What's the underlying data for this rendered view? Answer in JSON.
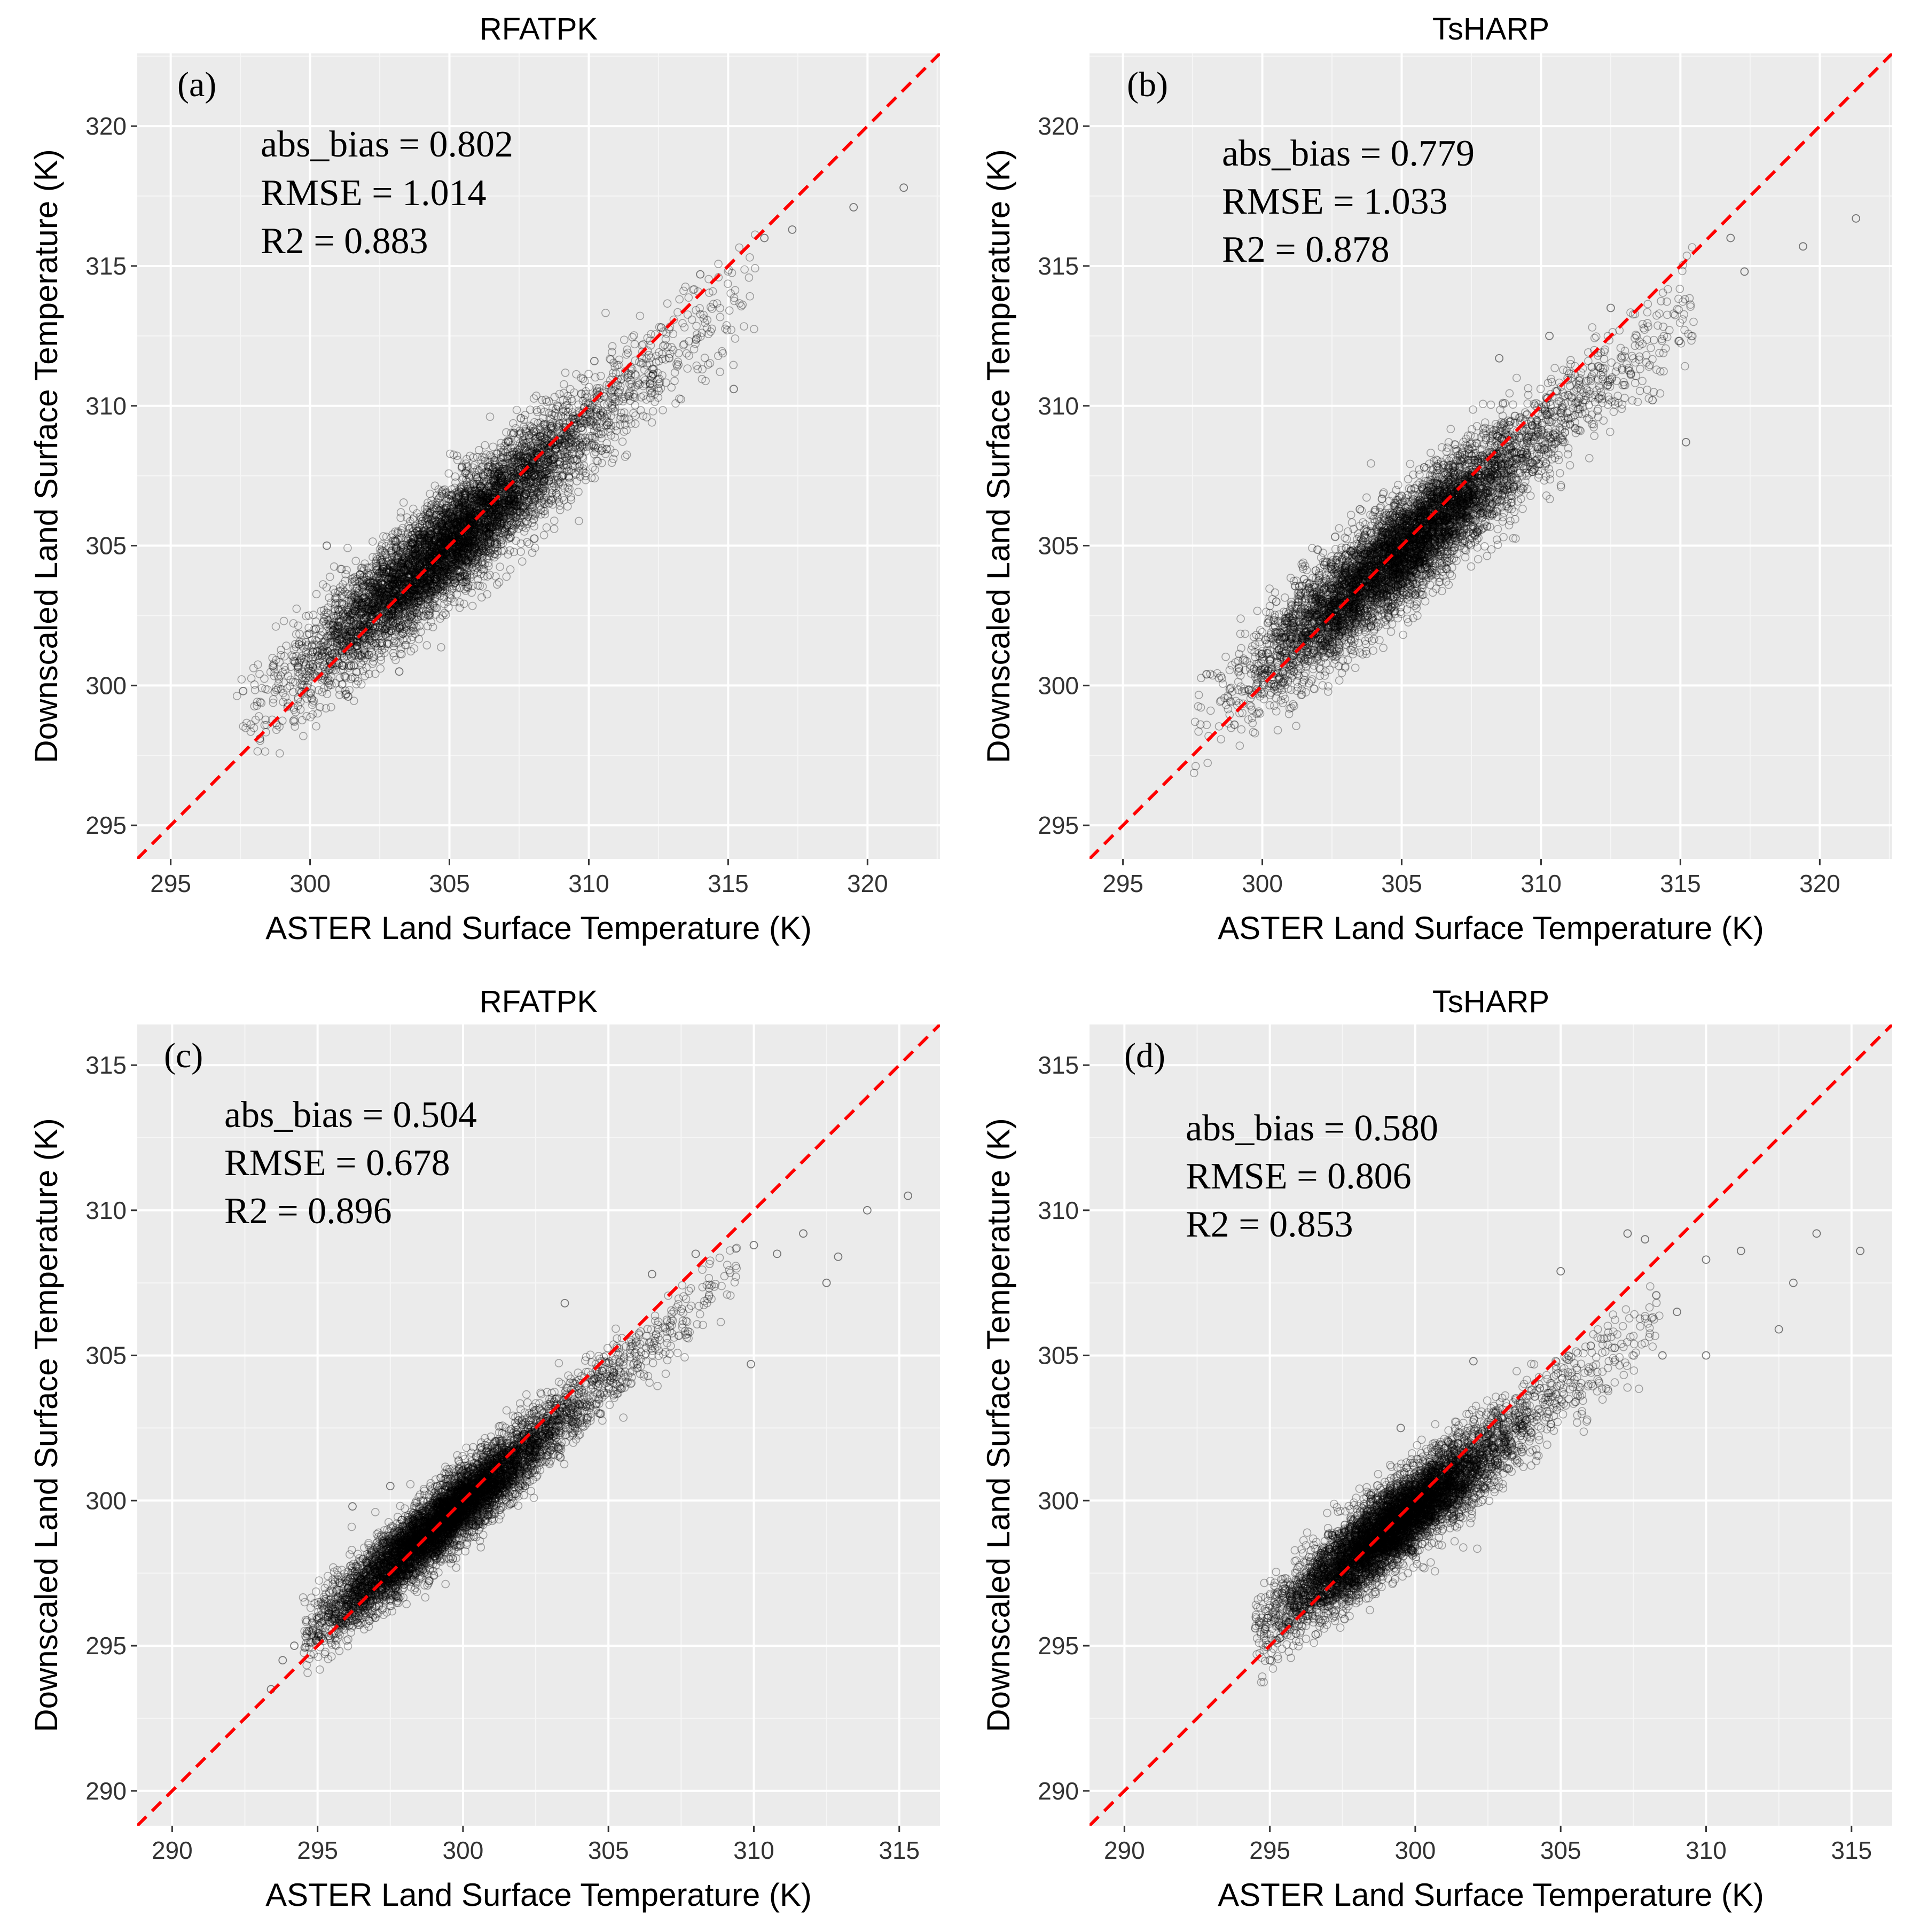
{
  "chart_data": [
    {
      "type": "scatter",
      "panel_tag": "(a)",
      "title": "RFATPK",
      "xlabel": "ASTER Land Surface Temperature (K)",
      "ylabel": "Downscaled Land Surface Temperature (K)",
      "xlim": [
        293.8,
        322.6
      ],
      "ylim": [
        293.8,
        322.6
      ],
      "x_ticks": [
        295,
        300,
        305,
        310,
        315,
        320
      ],
      "y_ticks": [
        295,
        300,
        305,
        310,
        315,
        320
      ],
      "grid": true,
      "reference_line": {
        "type": "1:1",
        "style": "dashed",
        "color": "#ff0000"
      },
      "stats": {
        "abs_bias": "abs_bias = 0.802",
        "rmse": "RMSE = 1.014",
        "r2": "R2 = 0.883"
      },
      "cloud": {
        "x_range": [
          297.8,
          315.5
        ],
        "x_mode": 304.5,
        "slope": 0.84,
        "intercept_at": 304.5,
        "offset": 0.15,
        "sigma": 0.95,
        "n": 6500,
        "seed": 11
      },
      "points_sample": [
        {
          "x": 297.6,
          "y": 299.8
        },
        {
          "x": 298.2,
          "y": 298.1
        },
        {
          "x": 300.1,
          "y": 301.2
        },
        {
          "x": 300.6,
          "y": 305.0
        },
        {
          "x": 301.3,
          "y": 299.7
        },
        {
          "x": 303.2,
          "y": 300.5
        },
        {
          "x": 305.5,
          "y": 303.7
        },
        {
          "x": 310.2,
          "y": 311.6
        },
        {
          "x": 312.6,
          "y": 312.8
        },
        {
          "x": 314.0,
          "y": 314.7
        },
        {
          "x": 315.2,
          "y": 310.6
        },
        {
          "x": 316.3,
          "y": 316.0
        },
        {
          "x": 317.3,
          "y": 316.3
        },
        {
          "x": 319.5,
          "y": 317.1
        },
        {
          "x": 321.3,
          "y": 317.8
        }
      ]
    },
    {
      "type": "scatter",
      "panel_tag": "(b)",
      "title": "TsHARP",
      "xlabel": "ASTER Land Surface Temperature (K)",
      "ylabel": "Downscaled Land Surface Temperature (K)",
      "xlim": [
        293.8,
        322.6
      ],
      "ylim": [
        293.8,
        322.6
      ],
      "x_ticks": [
        295,
        300,
        305,
        310,
        315,
        320
      ],
      "y_ticks": [
        295,
        300,
        305,
        310,
        315,
        320
      ],
      "grid": true,
      "reference_line": {
        "type": "1:1",
        "style": "dashed",
        "color": "#ff0000"
      },
      "stats": {
        "abs_bias": "abs_bias = 0.779",
        "rmse": "RMSE = 1.033",
        "r2": "R2 = 0.878"
      },
      "cloud": {
        "x_range": [
          298.0,
          315.0
        ],
        "x_mode": 304.5,
        "slope": 0.82,
        "intercept_at": 304.5,
        "offset": -0.1,
        "sigma": 0.95,
        "n": 6500,
        "seed": 23
      },
      "points_sample": [
        {
          "x": 298.0,
          "y": 300.4
        },
        {
          "x": 299.0,
          "y": 298.6
        },
        {
          "x": 300.5,
          "y": 303.0
        },
        {
          "x": 301.5,
          "y": 303.8
        },
        {
          "x": 303.5,
          "y": 306.3
        },
        {
          "x": 308.5,
          "y": 311.7
        },
        {
          "x": 310.3,
          "y": 312.5
        },
        {
          "x": 312.5,
          "y": 313.5
        },
        {
          "x": 314.0,
          "y": 310.2
        },
        {
          "x": 315.2,
          "y": 308.7
        },
        {
          "x": 316.8,
          "y": 316.0
        },
        {
          "x": 317.3,
          "y": 314.8
        },
        {
          "x": 319.4,
          "y": 315.7
        },
        {
          "x": 321.3,
          "y": 316.7
        }
      ]
    },
    {
      "type": "scatter",
      "panel_tag": "(c)",
      "title": "RFATPK",
      "xlabel": "ASTER Land Surface Temperature (K)",
      "ylabel": "Downscaled Land Surface Temperature (K)",
      "xlim": [
        288.8,
        316.4
      ],
      "ylim": [
        288.8,
        316.4
      ],
      "x_ticks": [
        290,
        295,
        300,
        305,
        310,
        315
      ],
      "y_ticks": [
        290,
        295,
        300,
        305,
        310,
        315
      ],
      "grid": true,
      "reference_line": {
        "type": "1:1",
        "style": "dashed",
        "color": "#ff0000"
      },
      "stats": {
        "abs_bias": "abs_bias = 0.504",
        "rmse": "RMSE = 0.678",
        "r2": "R2 = 0.896"
      },
      "cloud": {
        "x_range": [
          295.0,
          309.0
        ],
        "x_mode": 299.0,
        "slope": 0.85,
        "intercept_at": 299.0,
        "offset": 0.05,
        "sigma": 0.6,
        "n": 7000,
        "seed": 37
      },
      "points_sample": [
        {
          "x": 293.4,
          "y": 293.5
        },
        {
          "x": 293.8,
          "y": 294.5
        },
        {
          "x": 294.2,
          "y": 295.0
        },
        {
          "x": 296.2,
          "y": 299.8
        },
        {
          "x": 297.5,
          "y": 300.5
        },
        {
          "x": 303.5,
          "y": 306.8
        },
        {
          "x": 306.5,
          "y": 307.8
        },
        {
          "x": 308.0,
          "y": 308.5
        },
        {
          "x": 309.9,
          "y": 304.7
        },
        {
          "x": 310.0,
          "y": 308.8
        },
        {
          "x": 310.8,
          "y": 308.5
        },
        {
          "x": 311.7,
          "y": 309.2
        },
        {
          "x": 312.5,
          "y": 307.5
        },
        {
          "x": 312.9,
          "y": 308.4
        },
        {
          "x": 313.9,
          "y": 310.0
        },
        {
          "x": 315.3,
          "y": 310.5
        }
      ]
    },
    {
      "type": "scatter",
      "panel_tag": "(d)",
      "title": "TsHARP",
      "xlabel": "ASTER Land Surface Temperature (K)",
      "ylabel": "Downscaled Land Surface Temperature (K)",
      "xlim": [
        288.8,
        316.4
      ],
      "ylim": [
        288.8,
        316.4
      ],
      "x_ticks": [
        290,
        295,
        300,
        305,
        310,
        315
      ],
      "y_ticks": [
        290,
        295,
        300,
        305,
        310,
        315
      ],
      "grid": true,
      "reference_line": {
        "type": "1:1",
        "style": "dashed",
        "color": "#ff0000"
      },
      "stats": {
        "abs_bias": "abs_bias = 0.580",
        "rmse": "RMSE = 0.806",
        "r2": "R2 = 0.853"
      },
      "cloud": {
        "x_range": [
          295.0,
          308.0
        ],
        "x_mode": 299.0,
        "slope": 0.78,
        "intercept_at": 299.0,
        "offset": -0.05,
        "sigma": 0.7,
        "n": 7000,
        "seed": 53
      },
      "points_sample": [
        {
          "x": 294.5,
          "y": 295.6
        },
        {
          "x": 295.0,
          "y": 294.5
        },
        {
          "x": 297.0,
          "y": 298.8
        },
        {
          "x": 299.5,
          "y": 302.5
        },
        {
          "x": 302.0,
          "y": 304.8
        },
        {
          "x": 305.0,
          "y": 307.9
        },
        {
          "x": 307.3,
          "y": 309.2
        },
        {
          "x": 307.9,
          "y": 309.0
        },
        {
          "x": 308.5,
          "y": 305.0
        },
        {
          "x": 309.0,
          "y": 306.5
        },
        {
          "x": 310.0,
          "y": 308.3
        },
        {
          "x": 310.0,
          "y": 305.0
        },
        {
          "x": 311.2,
          "y": 308.6
        },
        {
          "x": 312.5,
          "y": 305.9
        },
        {
          "x": 313.0,
          "y": 307.5
        },
        {
          "x": 313.8,
          "y": 309.2
        },
        {
          "x": 315.3,
          "y": 308.6
        }
      ]
    }
  ],
  "colors": {
    "panel_background": "#ebebeb",
    "grid_major": "#ffffff",
    "points": "#000000",
    "reference_line": "#ff0000"
  }
}
